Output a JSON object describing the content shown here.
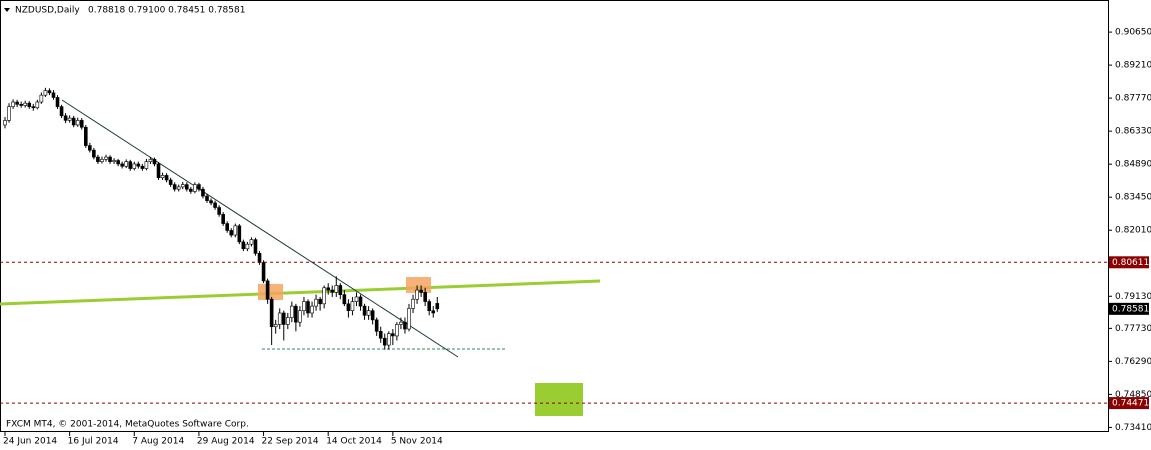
{
  "chart_data": {
    "type": "candlestick",
    "title": "NZDUSD,Daily",
    "ohlc_label": "0.78818 0.79100 0.78451 0.78581",
    "footer": "FXCM MT4, © 2001-2014, MetaQuotes Software Corp.",
    "categories": [
      "24 Jun 2014",
      null,
      null,
      null,
      null,
      null,
      null,
      null,
      null,
      null,
      null,
      null,
      null,
      null,
      null,
      null,
      "16 Jul 2014",
      null,
      null,
      null,
      null,
      null,
      null,
      null,
      null,
      null,
      null,
      null,
      null,
      null,
      null,
      null,
      "7 Aug 2014",
      null,
      null,
      null,
      null,
      null,
      null,
      null,
      null,
      null,
      null,
      null,
      null,
      null,
      null,
      null,
      "29 Aug 2014",
      null,
      null,
      null,
      null,
      null,
      null,
      null,
      null,
      null,
      null,
      null,
      null,
      null,
      null,
      null,
      "22 Sep 2014",
      null,
      null,
      null,
      null,
      null,
      null,
      null,
      null,
      null,
      null,
      null,
      null,
      null,
      null,
      null,
      "14 Oct 2014",
      null,
      null,
      null,
      null,
      null,
      null,
      null,
      null,
      null,
      null,
      null,
      null,
      null,
      null,
      null,
      "5 Nov 2014",
      null,
      null,
      null,
      null,
      null,
      null,
      null,
      null,
      null,
      null,
      null
    ],
    "open": [
      0.866,
      0.868,
      0.874,
      0.876,
      0.875,
      0.8745,
      0.8755,
      0.874,
      0.8735,
      0.876,
      0.879,
      0.881,
      0.88,
      0.878,
      0.874,
      0.87,
      0.868,
      0.869,
      0.866,
      0.868,
      0.865,
      0.857,
      0.855,
      0.852,
      0.85,
      0.851,
      0.852,
      0.85,
      0.8505,
      0.849,
      0.848,
      0.85,
      0.847,
      0.849,
      0.848,
      0.847,
      0.85,
      0.851,
      0.849,
      0.843,
      0.844,
      0.842,
      0.84,
      0.838,
      0.839,
      0.84,
      0.838,
      0.837,
      0.84,
      0.838,
      0.835,
      0.833,
      0.832,
      0.83,
      0.827,
      0.823,
      0.82,
      0.818,
      0.822,
      0.815,
      0.812,
      0.814,
      0.816,
      0.81,
      0.806,
      0.798,
      0.79,
      0.778,
      0.779,
      0.784,
      0.779,
      0.782,
      0.787,
      0.78,
      0.785,
      0.789,
      0.784,
      0.787,
      0.79,
      0.788,
      0.795,
      0.794,
      0.793,
      0.796,
      0.792,
      0.788,
      0.785,
      0.789,
      0.791,
      0.787,
      0.783,
      0.785,
      0.781,
      0.776,
      0.773,
      0.77,
      0.775,
      0.774,
      0.779,
      0.78,
      0.777,
      0.786,
      0.79,
      0.794,
      0.793,
      0.789,
      0.785,
      0.78818
    ],
    "high": [
      0.8695,
      0.8755,
      0.8772,
      0.877,
      0.8762,
      0.8766,
      0.8764,
      0.8752,
      0.877,
      0.8802,
      0.8822,
      0.882,
      0.8812,
      0.879,
      0.8748,
      0.8712,
      0.8702,
      0.87,
      0.8692,
      0.869,
      0.866,
      0.8582,
      0.856,
      0.853,
      0.8522,
      0.853,
      0.8528,
      0.8515,
      0.8512,
      0.85,
      0.851,
      0.8508,
      0.85,
      0.85,
      0.849,
      0.8512,
      0.852,
      0.8518,
      0.8498,
      0.8452,
      0.845,
      0.843,
      0.841,
      0.84,
      0.8412,
      0.841,
      0.839,
      0.841,
      0.8408,
      0.839,
      0.836,
      0.834,
      0.833,
      0.831,
      0.828,
      0.824,
      0.821,
      0.823,
      0.8228,
      0.816,
      0.815,
      0.817,
      0.8168,
      0.811,
      0.807,
      0.799,
      0.791,
      0.781,
      0.786,
      0.785,
      0.784,
      0.789,
      0.788,
      0.787,
      0.791,
      0.79,
      0.789,
      0.792,
      0.791,
      0.796,
      0.797,
      0.796,
      0.8,
      0.797,
      0.794,
      0.79,
      0.791,
      0.793,
      0.792,
      0.788,
      0.787,
      0.786,
      0.782,
      0.778,
      0.775,
      0.776,
      0.777,
      0.78,
      0.782,
      0.782,
      0.788,
      0.792,
      0.796,
      0.796,
      0.795,
      0.79,
      0.787,
      0.791
    ],
    "low": [
      0.8645,
      0.867,
      0.873,
      0.8738,
      0.8735,
      0.8736,
      0.873,
      0.8722,
      0.8728,
      0.8752,
      0.8782,
      0.879,
      0.877,
      0.873,
      0.869,
      0.8668,
      0.867,
      0.865,
      0.8652,
      0.864,
      0.856,
      0.854,
      0.851,
      0.849,
      0.8492,
      0.85,
      0.849,
      0.849,
      0.848,
      0.847,
      0.8472,
      0.846,
      0.8462,
      0.847,
      0.846,
      0.8462,
      0.849,
      0.848,
      0.842,
      0.842,
      0.841,
      0.839,
      0.837,
      0.837,
      0.838,
      0.837,
      0.836,
      0.8362,
      0.837,
      0.834,
      0.832,
      0.831,
      0.829,
      0.826,
      0.822,
      0.819,
      0.817,
      0.817,
      0.814,
      0.811,
      0.811,
      0.813,
      0.809,
      0.805,
      0.797,
      0.788,
      0.77,
      0.775,
      0.777,
      0.772,
      0.777,
      0.78,
      0.776,
      0.778,
      0.783,
      0.782,
      0.782,
      0.785,
      0.785,
      0.786,
      0.792,
      0.791,
      0.791,
      0.79,
      0.787,
      0.782,
      0.783,
      0.787,
      0.785,
      0.781,
      0.781,
      0.779,
      0.774,
      0.771,
      0.768,
      0.768,
      0.77,
      0.772,
      0.777,
      0.775,
      0.776,
      0.784,
      0.788,
      0.791,
      0.787,
      0.783,
      0.782,
      0.78451
    ],
    "close": [
      0.868,
      0.874,
      0.876,
      0.875,
      0.8745,
      0.8755,
      0.874,
      0.8735,
      0.876,
      0.879,
      0.881,
      0.88,
      0.878,
      0.874,
      0.87,
      0.868,
      0.869,
      0.866,
      0.868,
      0.865,
      0.857,
      0.855,
      0.852,
      0.85,
      0.851,
      0.852,
      0.85,
      0.8505,
      0.849,
      0.848,
      0.85,
      0.847,
      0.849,
      0.848,
      0.847,
      0.85,
      0.851,
      0.849,
      0.843,
      0.844,
      0.842,
      0.84,
      0.838,
      0.839,
      0.84,
      0.838,
      0.837,
      0.84,
      0.838,
      0.835,
      0.833,
      0.832,
      0.83,
      0.827,
      0.823,
      0.82,
      0.818,
      0.822,
      0.815,
      0.812,
      0.814,
      0.816,
      0.81,
      0.806,
      0.798,
      0.79,
      0.778,
      0.779,
      0.784,
      0.779,
      0.782,
      0.787,
      0.78,
      0.785,
      0.789,
      0.784,
      0.787,
      0.79,
      0.788,
      0.795,
      0.794,
      0.793,
      0.796,
      0.792,
      0.788,
      0.785,
      0.789,
      0.791,
      0.787,
      0.783,
      0.785,
      0.781,
      0.776,
      0.773,
      0.77,
      0.775,
      0.774,
      0.779,
      0.78,
      0.777,
      0.786,
      0.79,
      0.794,
      0.793,
      0.789,
      0.785,
      0.784,
      0.78581
    ],
    "ylim": [
      0.7321,
      0.9205
    ],
    "yticks": [
      {
        "value": 0.9065,
        "label": "0.90650"
      },
      {
        "value": 0.8921,
        "label": "0.89210"
      },
      {
        "value": 0.8777,
        "label": "0.87770"
      },
      {
        "value": 0.8633,
        "label": "0.86330"
      },
      {
        "value": 0.8489,
        "label": "0.84890"
      },
      {
        "value": 0.8345,
        "label": "0.83450"
      },
      {
        "value": 0.8201,
        "label": "0.82010"
      },
      {
        "value": 0.7913,
        "label": "0.79130"
      },
      {
        "value": 0.7773,
        "label": "0.77730"
      },
      {
        "value": 0.7629,
        "label": "0.76290"
      },
      {
        "value": 0.7485,
        "label": "0.74850"
      },
      {
        "value": 0.7341,
        "label": "0.73410"
      }
    ],
    "levels": [
      {
        "value": 0.80611,
        "label": "0.80611"
      },
      {
        "value": 0.74471,
        "label": "0.74471"
      }
    ],
    "current_price": {
      "value": 0.78581,
      "label": "0.78581"
    },
    "level_color": "#8b0000",
    "bull_color": "#ffffff",
    "bear_color": "#000000"
  }
}
